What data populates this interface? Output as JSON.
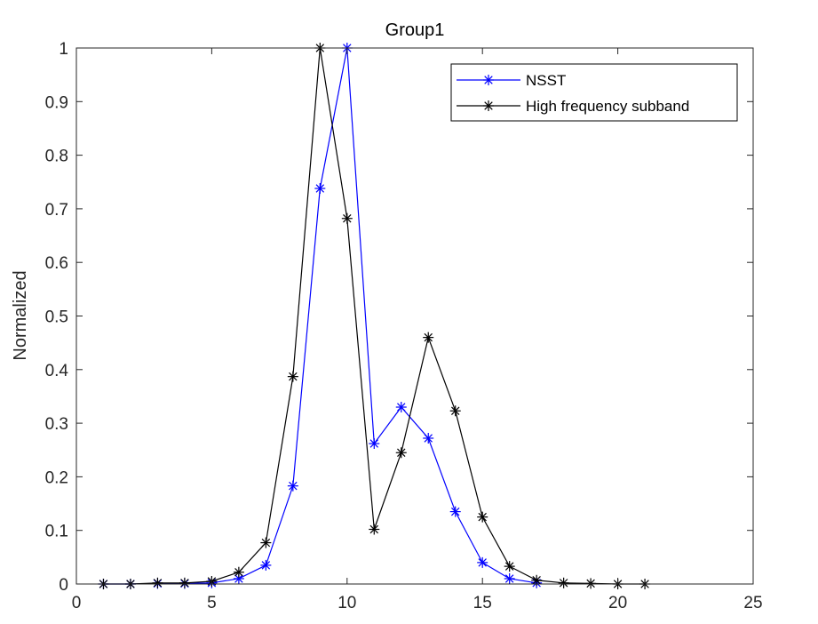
{
  "chart_data": {
    "type": "line",
    "title": "Group1",
    "xlabel": "",
    "ylabel": "Normalized",
    "xlim": [
      0,
      25
    ],
    "ylim": [
      0,
      1
    ],
    "xticks": [
      0,
      5,
      10,
      15,
      20,
      25
    ],
    "yticks": [
      0,
      0.1,
      0.2,
      0.3,
      0.4,
      0.5,
      0.6,
      0.7,
      0.8,
      0.9,
      1
    ],
    "xtick_labels": [
      "0",
      "5",
      "10",
      "15",
      "20",
      "25"
    ],
    "ytick_labels": [
      "0",
      "0.1",
      "0.2",
      "0.3",
      "0.4",
      "0.5",
      "0.6",
      "0.7",
      "0.8",
      "0.9",
      "1"
    ],
    "grid": false,
    "legend_position": "top-right",
    "marker": "asterisk",
    "series": [
      {
        "name": "NSST",
        "color": "#0000ff",
        "x": [
          1,
          2,
          3,
          4,
          5,
          6,
          7,
          8,
          9,
          10,
          11,
          12,
          13,
          14,
          15,
          16,
          17
        ],
        "y": [
          0,
          0,
          0.001,
          0.001,
          0.002,
          0.01,
          0.035,
          0.183,
          0.738,
          1.0,
          0.262,
          0.33,
          0.272,
          0.135,
          0.04,
          0.01,
          0.002
        ]
      },
      {
        "name": "High frequency subband",
        "color": "#000000",
        "x": [
          1,
          2,
          3,
          4,
          5,
          6,
          7,
          8,
          9,
          10,
          11,
          12,
          13,
          14,
          15,
          16,
          17,
          18,
          19,
          20,
          21
        ],
        "y": [
          0,
          0,
          0.002,
          0.002,
          0.005,
          0.022,
          0.077,
          0.387,
          1.0,
          0.682,
          0.102,
          0.245,
          0.46,
          0.323,
          0.125,
          0.033,
          0.007,
          0.002,
          0.001,
          0,
          0
        ]
      }
    ]
  }
}
